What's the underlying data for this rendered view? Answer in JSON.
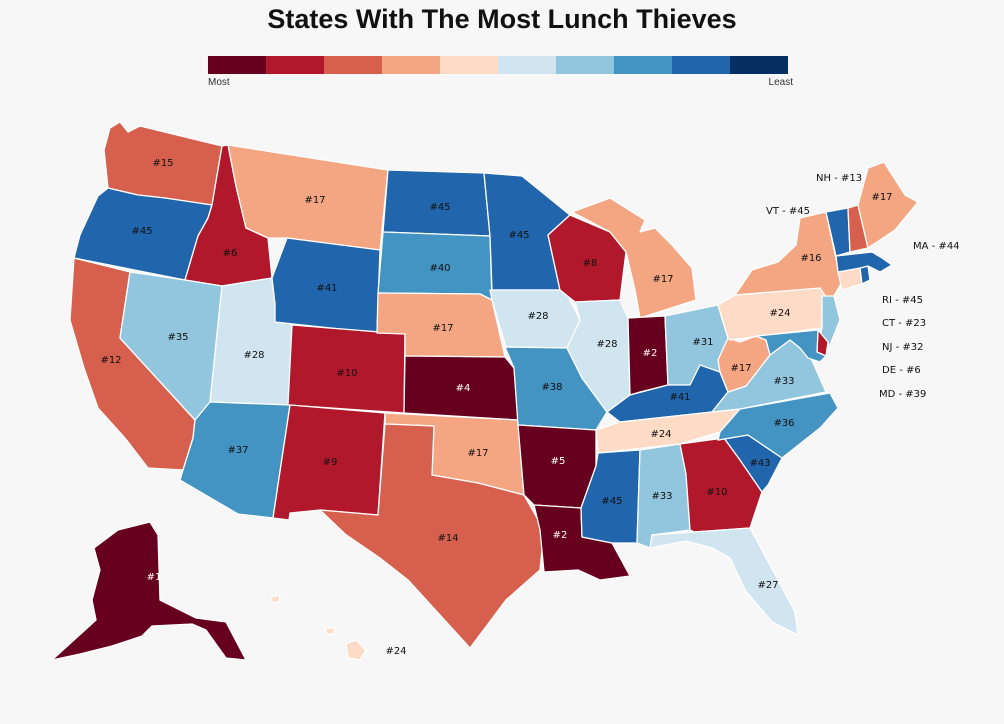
{
  "title": "States With The Most Lunch Thieves",
  "legend": {
    "low_label": "Most",
    "high_label": "Least",
    "colors": [
      "#67001f",
      "#b2182b",
      "#d6604d",
      "#f4a582",
      "#fddbc7",
      "#d1e5f0",
      "#92c5de",
      "#4393c3",
      "#2166ac",
      "#053061"
    ]
  },
  "states": {
    "WA": {
      "rank": "#15",
      "color": "#d6604d"
    },
    "OR": {
      "rank": "#45",
      "color": "#2166ac"
    },
    "CA": {
      "rank": "#12",
      "color": "#d6604d"
    },
    "ID": {
      "rank": "#6",
      "color": "#b2182b"
    },
    "NV": {
      "rank": "#35",
      "color": "#92c5de"
    },
    "UT": {
      "rank": "#28",
      "color": "#d1e5f0"
    },
    "AZ": {
      "rank": "#37",
      "color": "#4393c3"
    },
    "MT": {
      "rank": "#17",
      "color": "#f4a582"
    },
    "WY": {
      "rank": "#41",
      "color": "#2166ac"
    },
    "CO": {
      "rank": "#10",
      "color": "#b2182b"
    },
    "NM": {
      "rank": "#9",
      "color": "#b2182b"
    },
    "ND": {
      "rank": "#45",
      "color": "#2166ac"
    },
    "SD": {
      "rank": "#40",
      "color": "#4393c3"
    },
    "NE": {
      "rank": "#17",
      "color": "#f4a582"
    },
    "KS": {
      "rank": "#4",
      "color": "#67001f"
    },
    "OK": {
      "rank": "#17",
      "color": "#f4a582"
    },
    "TX": {
      "rank": "#14",
      "color": "#d6604d"
    },
    "MN": {
      "rank": "#45",
      "color": "#2166ac"
    },
    "IA": {
      "rank": "#28",
      "color": "#d1e5f0"
    },
    "MO": {
      "rank": "#38",
      "color": "#4393c3"
    },
    "AR": {
      "rank": "#5",
      "color": "#67001f"
    },
    "LA": {
      "rank": "#2",
      "color": "#67001f"
    },
    "WI": {
      "rank": "#8",
      "color": "#b2182b"
    },
    "IL": {
      "rank": "#28",
      "color": "#d1e5f0"
    },
    "MI": {
      "rank": "#17",
      "color": "#f4a582"
    },
    "IN": {
      "rank": "#2",
      "color": "#67001f"
    },
    "OH": {
      "rank": "#31",
      "color": "#92c5de"
    },
    "KY": {
      "rank": "#41",
      "color": "#2166ac"
    },
    "TN": {
      "rank": "#24",
      "color": "#fddbc7"
    },
    "MS": {
      "rank": "#45",
      "color": "#2166ac"
    },
    "AL": {
      "rank": "#33",
      "color": "#92c5de"
    },
    "GA": {
      "rank": "#10",
      "color": "#b2182b"
    },
    "FL": {
      "rank": "#27",
      "color": "#d1e5f0"
    },
    "SC": {
      "rank": "#43",
      "color": "#2166ac"
    },
    "NC": {
      "rank": "#36",
      "color": "#4393c3"
    },
    "VA": {
      "rank": "#33",
      "color": "#92c5de"
    },
    "WV": {
      "rank": "#17",
      "color": "#f4a582"
    },
    "PA": {
      "rank": "#24",
      "color": "#fddbc7"
    },
    "NY": {
      "rank": "#16",
      "color": "#f4a582"
    },
    "ME": {
      "rank": "#17",
      "color": "#f4a582"
    },
    "AK": {
      "rank": "#1",
      "color": "#67001f"
    },
    "HI": {
      "rank": "#24",
      "color": "#fddbc7"
    },
    "VT": {
      "color": "#2166ac"
    },
    "NH": {
      "color": "#d6604d"
    },
    "MA": {
      "color": "#2166ac"
    },
    "RI": {
      "color": "#2166ac"
    },
    "CT": {
      "color": "#fddbc7"
    },
    "NJ": {
      "color": "#92c5de"
    },
    "DE": {
      "color": "#b2182b"
    },
    "MD": {
      "color": "#4393c3"
    }
  },
  "side_labels": {
    "NH": "NH - #13",
    "VT": "VT - #45",
    "MA": "MA - #44",
    "RI": "RI - #45",
    "CT": "CT - #23",
    "NJ": "NJ - #32",
    "DE": "DE - #6",
    "MD": "MD - #39"
  }
}
